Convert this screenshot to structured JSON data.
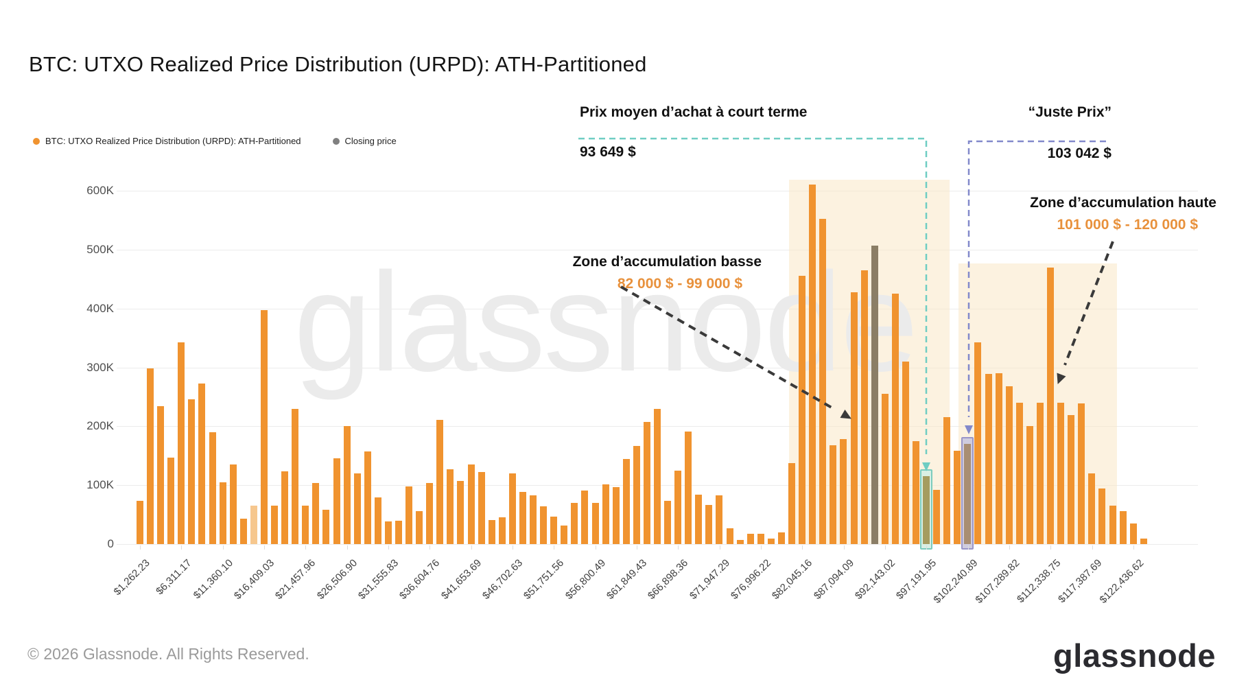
{
  "header": {
    "title": "BTC: UTXO Realized Price Distribution (URPD): ATH-Partitioned"
  },
  "legend": {
    "series": [
      {
        "label": "BTC: UTXO Realized Price Distribution (URPD): ATH-Partitioned",
        "color": "#f0932f"
      },
      {
        "label": "Closing price",
        "color": "#808080"
      }
    ]
  },
  "annotations": {
    "short_term": {
      "title": "Prix moyen d’achat à court terme",
      "value": "93 649 $",
      "color": "#6fcdc3"
    },
    "fair_price": {
      "title": "“Juste Prix”",
      "value": "103 042 $",
      "color": "#8289cb"
    },
    "zone_low": {
      "title": "Zone d’accumulation basse",
      "range": "82 000 $ - 99 000 $"
    },
    "zone_high": {
      "title": "Zone d’accumulation haute",
      "range": "101 000 $ - 120 000 $"
    }
  },
  "watermark": "glassnode",
  "footer": {
    "copyright": "© 2026 Glassnode. All Rights Reserved.",
    "logo": "glassnode"
  },
  "chart_data": {
    "type": "bar",
    "title": "BTC: UTXO Realized Price Distribution (URPD): ATH-Partitioned",
    "xlabel": "",
    "ylabel": "",
    "ylim": [
      0,
      620000
    ],
    "grid": true,
    "y_ticks": [
      "0",
      "100K",
      "200K",
      "300K",
      "400K",
      "500K",
      "600K"
    ],
    "x_tick_labels": [
      "$1,262.23",
      "$6,311.17",
      "$11,360.10",
      "$16,409.03",
      "$21,457.96",
      "$26,506.90",
      "$31,555.83",
      "$36,604.76",
      "$41,653.69",
      "$46,702.63",
      "$51,751.56",
      "$56,800.49",
      "$61,849.43",
      "$66,898.36",
      "$71,947.29",
      "$76,996.22",
      "$82,045.16",
      "$87,094.09",
      "$92,143.02",
      "$97,191.95",
      "$102,240.89",
      "$107,289.82",
      "$112,338.75",
      "$117,387.69",
      "$122,436.62"
    ],
    "values": [
      73000,
      298000,
      234000,
      147000,
      343000,
      246000,
      273000,
      190000,
      105000,
      135000,
      43000,
      65000,
      397000,
      65000,
      123000,
      229000,
      65000,
      104000,
      58000,
      146000,
      200000,
      120000,
      157000,
      79000,
      38000,
      40000,
      98000,
      56000,
      104000,
      211000,
      127000,
      107000,
      135000,
      122000,
      41000,
      45000,
      120000,
      88000,
      83000,
      64000,
      47000,
      32000,
      70000,
      91000,
      70000,
      101000,
      97000,
      145000,
      167000,
      207000,
      229000,
      73000,
      125000,
      191000,
      84000,
      66000,
      83000,
      27000,
      7000,
      17000,
      17000,
      9000,
      20000,
      137000,
      455000,
      610000,
      552000,
      168000,
      178000,
      428000,
      465000,
      507000,
      255000,
      425000,
      310000,
      175000,
      115000,
      92000,
      215000,
      158000,
      170000,
      343000,
      289000,
      290000,
      268000,
      240000,
      200000,
      240000,
      470000,
      240000,
      219000,
      239000,
      120000,
      94000,
      65000,
      56000,
      35000,
      9000
    ],
    "markers": {
      "closing_price_index": 71,
      "faded_bar_index": 11,
      "short_term_index": 76,
      "short_term_price_usd": "93 649 $",
      "fair_price_index": 80,
      "fair_price_usd": "103 042 $"
    },
    "zones": [
      {
        "name": "Zone d’accumulation basse",
        "range": "82 000 $ - 99 000 $"
      },
      {
        "name": "Zone d’accumulation haute",
        "range": "101 000 $ - 120 000 $"
      }
    ],
    "legend_position": "top-left"
  }
}
